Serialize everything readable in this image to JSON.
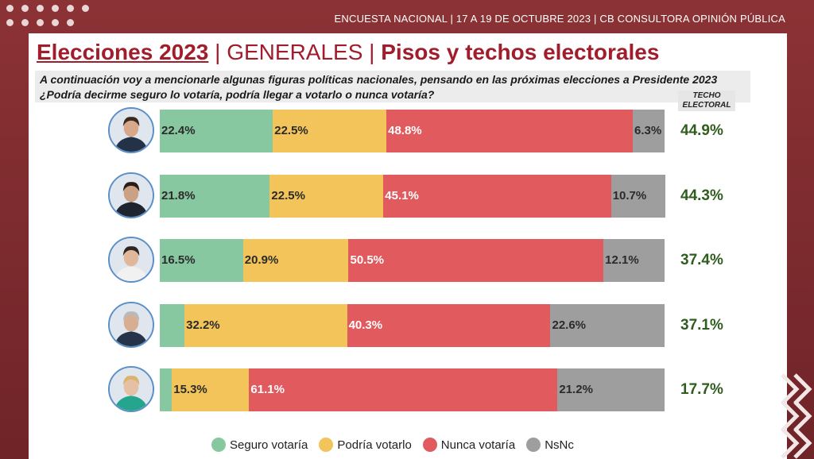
{
  "header": {
    "survey_info": "ENCUESTA NACIONAL | 17 A 19 DE OCTUBRE 2023 | CB CONSULTORA OPINIÓN PÚBLICA"
  },
  "title": {
    "part1": "Elecciones 2023",
    "separator": "|",
    "part2": "GENERALES",
    "part3": "Pisos y techos electorales"
  },
  "question": {
    "line1": "A continuación voy a mencionarle algunas figuras políticas nacionales, pensando en las próximas elecciones a Presidente 2023",
    "line2": "¿Podría  decirme seguro lo votaría, podría llegar a votarlo o nunca votaría?"
  },
  "techo_header": {
    "line1": "TECHO",
    "line2": "ELECTORAL"
  },
  "colors": {
    "seguro": "#88c8a0",
    "podria": "#f2c45a",
    "nunca": "#e05a5e",
    "nsnc": "#9e9e9e",
    "title": "#a11d2b",
    "techo": "#2f5d1e"
  },
  "chart_data": {
    "type": "bar",
    "orientation": "horizontal",
    "stacked": true,
    "normalized_percent": true,
    "categories": [
      "candidato-1",
      "candidato-2",
      "candidato-3",
      "candidato-4",
      "candidato-5"
    ],
    "series": [
      {
        "name": "Seguro votaría",
        "values": [
          22.4,
          21.8,
          16.5,
          4.9,
          2.4
        ],
        "labels": [
          "22.4%",
          "21.8%",
          "16.5%",
          "",
          ""
        ]
      },
      {
        "name": "Podría votarlo",
        "values": [
          22.5,
          22.5,
          20.9,
          32.2,
          15.3
        ],
        "labels": [
          "22.5%",
          "22.5%",
          "20.9%",
          "32.2%",
          "15.3%"
        ]
      },
      {
        "name": "Nunca votaría",
        "values": [
          48.8,
          45.1,
          50.5,
          40.3,
          61.1
        ],
        "labels": [
          "48.8%",
          "45.1%",
          "50.5%",
          "40.3%",
          "61.1%"
        ]
      },
      {
        "name": "NsNc",
        "values": [
          6.3,
          10.7,
          12.1,
          22.6,
          21.2
        ],
        "labels": [
          "6.3%",
          "10.7%",
          "12.1%",
          "22.6%",
          "21.2%"
        ]
      }
    ],
    "techo_electoral": [
      "44.9%",
      "44.3%",
      "37.4%",
      "37.1%",
      "17.7%"
    ],
    "legend": {
      "position": "bottom"
    },
    "xlim": [
      0,
      100
    ]
  }
}
